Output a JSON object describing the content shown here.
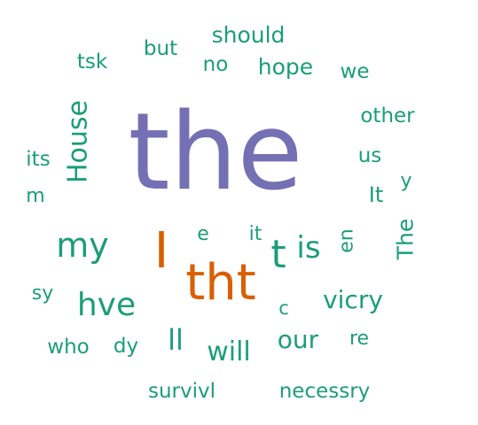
{
  "word_cloud": {
    "words": [
      {
        "text": "the",
        "color": "#7570b3",
        "rotated": false
      },
      {
        "text": "tht",
        "color": "#d95f02",
        "rotated": false
      },
      {
        "text": "I",
        "color": "#d95f02",
        "rotated": false
      },
      {
        "text": "my",
        "color": "#1b9e77",
        "rotated": false
      },
      {
        "text": "hve",
        "color": "#1b9e77",
        "rotated": false
      },
      {
        "text": "House",
        "color": "#1b9e77",
        "rotated": true
      },
      {
        "text": "t",
        "color": "#1b9e77",
        "rotated": false
      },
      {
        "text": "is",
        "color": "#1b9e77",
        "rotated": false
      },
      {
        "text": "our",
        "color": "#1b9e77",
        "rotated": false
      },
      {
        "text": "will",
        "color": "#1b9e77",
        "rotated": false
      },
      {
        "text": "vicry",
        "color": "#1b9e77",
        "rotated": false
      },
      {
        "text": "ll",
        "color": "#1b9e77",
        "rotated": false
      },
      {
        "text": "should",
        "color": "#1b9e77",
        "rotated": false
      },
      {
        "text": "hope",
        "color": "#1b9e77",
        "rotated": false
      },
      {
        "text": "The",
        "color": "#1b9e77",
        "rotated": true
      },
      {
        "text": "survivl",
        "color": "#1b9e77",
        "rotated": false
      },
      {
        "text": "necessry",
        "color": "#1b9e77",
        "rotated": false
      },
      {
        "text": "other",
        "color": "#1b9e77",
        "rotated": false
      },
      {
        "text": "but",
        "color": "#1b9e77",
        "rotated": false
      },
      {
        "text": "no",
        "color": "#1b9e77",
        "rotated": false
      },
      {
        "text": "tsk",
        "color": "#1b9e77",
        "rotated": false
      },
      {
        "text": "we",
        "color": "#1b9e77",
        "rotated": false
      },
      {
        "text": "us",
        "color": "#1b9e77",
        "rotated": false
      },
      {
        "text": "its",
        "color": "#1b9e77",
        "rotated": false
      },
      {
        "text": "It",
        "color": "#1b9e77",
        "rotated": false
      },
      {
        "text": "who",
        "color": "#1b9e77",
        "rotated": false
      },
      {
        "text": "dy",
        "color": "#1b9e77",
        "rotated": false
      },
      {
        "text": "sy",
        "color": "#1b9e77",
        "rotated": false
      },
      {
        "text": "re",
        "color": "#1b9e77",
        "rotated": false
      },
      {
        "text": "en",
        "color": "#1b9e77",
        "rotated": true
      },
      {
        "text": "e",
        "color": "#1b9e77",
        "rotated": false
      },
      {
        "text": "it",
        "color": "#1b9e77",
        "rotated": false
      },
      {
        "text": "y",
        "color": "#1b9e77",
        "rotated": false
      },
      {
        "text": "m",
        "color": "#1b9e77",
        "rotated": false
      },
      {
        "text": "c",
        "color": "#1b9e77",
        "rotated": false
      }
    ]
  }
}
